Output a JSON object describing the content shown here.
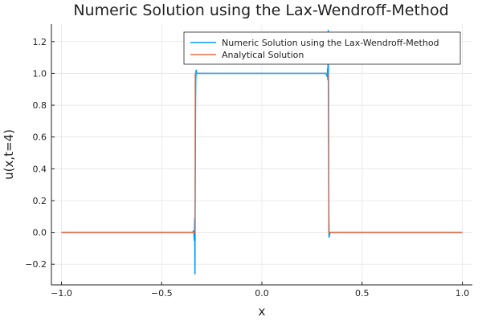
{
  "chart_data": {
    "type": "line",
    "title": "Numeric Solution using the Lax-Wendroff-Method",
    "xlabel": "x",
    "ylabel": "u(x,t=4)",
    "xlim": [
      -1.05,
      1.05
    ],
    "ylim": [
      -0.33,
      1.31
    ],
    "xticks": [
      -1.0,
      -0.5,
      0.0,
      0.5,
      1.0
    ],
    "xtick_labels": [
      "−1.0",
      "−0.5",
      "0.0",
      "0.5",
      "1.0"
    ],
    "yticks": [
      -0.2,
      0.0,
      0.2,
      0.4,
      0.6,
      0.8,
      1.0,
      1.2
    ],
    "ytick_labels": [
      "−0.2",
      "0.0",
      "0.2",
      "0.4",
      "0.6",
      "0.8",
      "1.0",
      "1.2"
    ],
    "grid": true,
    "legend_position": "top-right",
    "series": [
      {
        "name": "Numeric Solution using the Lax-Wendroff-Method",
        "color": "#009AFA",
        "x": [
          -1.0,
          -0.345,
          -0.34,
          -0.337,
          -0.335,
          -0.334,
          -0.333,
          -0.332,
          -0.331,
          -0.33,
          -0.328,
          -0.325,
          0.32,
          0.326,
          0.328,
          0.329,
          0.33,
          0.331,
          0.332,
          0.333,
          0.334,
          0.335,
          0.34,
          1.0
        ],
        "y": [
          0.0,
          0.0,
          0.01,
          -0.05,
          0.09,
          -0.26,
          0.17,
          0.5,
          0.85,
          0.96,
          1.02,
          1.0,
          1.0,
          0.98,
          1.03,
          0.96,
          1.1,
          1.27,
          0.83,
          0.5,
          0.12,
          -0.03,
          0.0,
          0.0
        ]
      },
      {
        "name": "Analytical Solution",
        "color": "#E26F46",
        "x": [
          -1.0,
          -0.333,
          -0.333,
          0.333,
          0.333,
          1.0
        ],
        "y": [
          0.0,
          0.0,
          1.0,
          1.0,
          0.0,
          0.0
        ]
      }
    ]
  }
}
